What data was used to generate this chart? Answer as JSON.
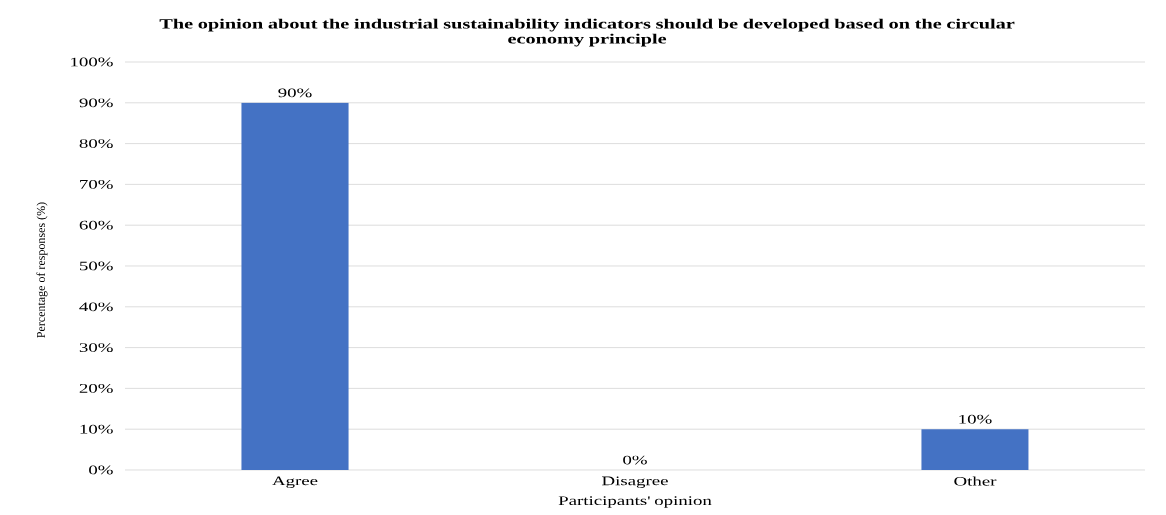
{
  "chart_data": {
    "type": "bar",
    "title": "The opinion about the industrial sustainability indicators should be developed based on the circular economy principle",
    "xlabel": "Participants' opinion",
    "ylabel": "Percentage of responses (%)",
    "categories": [
      "Agree",
      "Disagree",
      "Other"
    ],
    "values": [
      90,
      0,
      10
    ],
    "color": "#4472c4",
    "value_labels": [
      "90%",
      "0%",
      "10%"
    ],
    "ylim": [
      0,
      100
    ],
    "yticks": [
      {
        "value": 0,
        "label": "0%"
      },
      {
        "value": 10,
        "label": "10%"
      },
      {
        "value": 20,
        "label": "20%"
      },
      {
        "value": 30,
        "label": "30%"
      },
      {
        "value": 40,
        "label": "40%"
      },
      {
        "value": 50,
        "label": "50%"
      },
      {
        "value": 60,
        "label": "60%"
      },
      {
        "value": 70,
        "label": "70%"
      },
      {
        "value": 80,
        "label": "80%"
      },
      {
        "value": 90,
        "label": "90%"
      },
      {
        "value": 100,
        "label": "100%"
      }
    ],
    "grid": "y"
  }
}
